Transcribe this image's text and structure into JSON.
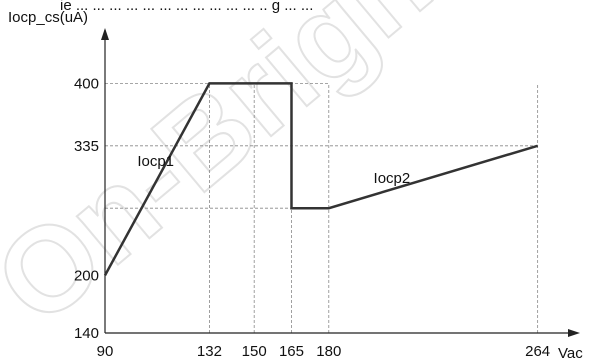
{
  "header_fragment": "ie ... ... ... ... ... ... ... ... ... ... ... .. g ... ...",
  "watermark_text": "On-Bright",
  "chart_data": {
    "type": "line",
    "title": "",
    "xlabel": "Vac",
    "ylabel": "Iocp_cs(uA)",
    "xlim": [
      90,
      275
    ],
    "ylim": [
      140,
      440
    ],
    "x_ticks": [
      90,
      132,
      150,
      165,
      180,
      264
    ],
    "y_ticks": [
      140,
      200,
      335,
      400
    ],
    "series": [
      {
        "x": [
          90,
          132,
          165,
          165,
          180,
          264
        ],
        "y": [
          200,
          400,
          400,
          270,
          270,
          335
        ]
      }
    ],
    "annotations": [
      {
        "text": "Iocp1",
        "x": 103,
        "y": 314
      },
      {
        "text": "Iocp2",
        "x": 198,
        "y": 296
      }
    ],
    "dashed_y_levels": [
      270
    ],
    "grid": false,
    "line_color": "#333333",
    "axis_color": "#222222"
  }
}
